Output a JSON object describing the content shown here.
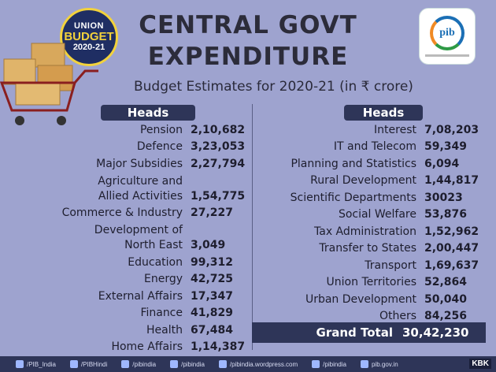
{
  "badge": {
    "line1": "UNION",
    "line2": "BUDGET",
    "line3": "2020-21"
  },
  "title": {
    "line1": "CENTRAL GOVT",
    "line2": "EXPENDITURE"
  },
  "logo": {
    "text": "pib"
  },
  "subtitle": "Budget Estimates for 2020-21 (in ₹ crore)",
  "left": {
    "heading": "Heads",
    "rows": [
      {
        "name": "Pension",
        "value": "2,10,682"
      },
      {
        "name": "Defence",
        "value": "3,23,053"
      },
      {
        "name": "Major Subsidies",
        "value": "2,27,794"
      },
      {
        "name": "Agriculture and",
        "name2": "Allied Activities",
        "value": "1,54,775"
      },
      {
        "name": "Commerce & Industry",
        "value": "27,227"
      },
      {
        "name": "Development of",
        "name2": "North East",
        "value": "3,049"
      },
      {
        "name": "Education",
        "value": "99,312"
      },
      {
        "name": "Energy",
        "value": "42,725"
      },
      {
        "name": "External Affairs",
        "value": "17,347"
      },
      {
        "name": "Finance",
        "value": "41,829"
      },
      {
        "name": "Health",
        "value": "67,484"
      },
      {
        "name": "Home Affairs",
        "value": "1,14,387"
      }
    ]
  },
  "right": {
    "heading": "Heads",
    "rows": [
      {
        "name": "Interest",
        "value": "7,08,203"
      },
      {
        "name": "IT and Telecom",
        "value": "59,349"
      },
      {
        "name": "Planning and Statistics",
        "value": "6,094"
      },
      {
        "name": "Rural Development",
        "value": "1,44,817"
      },
      {
        "name": "Scientific Departments",
        "value": "30023"
      },
      {
        "name": "Social Welfare",
        "value": "53,876"
      },
      {
        "name": "Tax Administration",
        "value": "1,52,962"
      },
      {
        "name": "Transfer to States",
        "value": "2,00,447"
      },
      {
        "name": "Transport",
        "value": "1,69,637"
      },
      {
        "name": "Union Territories",
        "value": "52,864"
      },
      {
        "name": "Urban Development",
        "value": "50,040"
      },
      {
        "name": "Others",
        "value": "84,256"
      }
    ]
  },
  "grand_total": {
    "label": "Grand Total",
    "value": "30,42,230"
  },
  "footer": {
    "links": [
      "/PIB_India",
      "/PIBHindi",
      "/pibindia",
      "/pibindia",
      "/pibindia.wordpress.com",
      "/pibindia",
      "pib.gov.in"
    ],
    "tag": "KBK"
  },
  "colors": {
    "background": "#9ea3cf",
    "header_bar": "#2e3558",
    "badge": "#1f2e63",
    "accent": "#f2d23c"
  }
}
